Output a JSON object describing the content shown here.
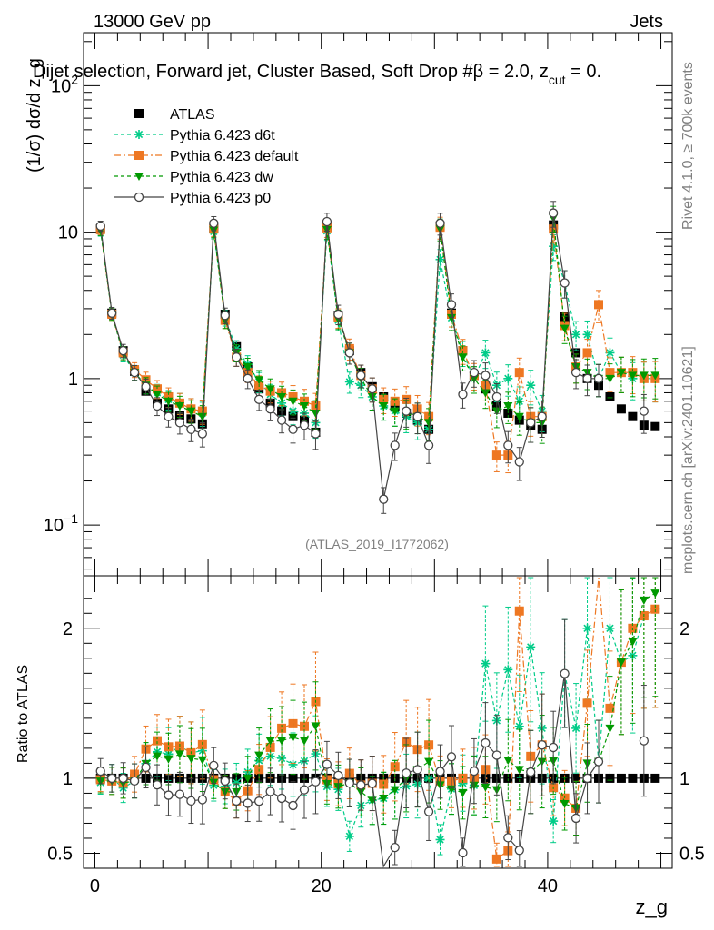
{
  "header": {
    "energy": "13000 GeV pp",
    "process": "Jets",
    "title": "Dijet selection, Forward jet, Cluster Based, Soft Drop #β = 2.0, z",
    "title_sub": "cut",
    "title_tail": " = 0.",
    "analysis_id": "(ATLAS_2019_I1772062)",
    "side_rivet": "Rivet 4.1.0, ≥ 700k events",
    "side_mcplots": "mcplots.cern.ch [arXiv:2401.10621]"
  },
  "chart_data": [
    {
      "type": "scatter",
      "panel": "main",
      "yscale": "log",
      "ylabel": "(1/σ) dσ/d z_g",
      "ylim": [
        0.045,
        230
      ],
      "xlim": [
        -1,
        51
      ],
      "ytick_labels": [
        {
          "v": 0.1,
          "base": "10",
          "exp": "−1"
        },
        {
          "v": 1,
          "text": "1"
        },
        {
          "v": 10,
          "text": "10"
        },
        {
          "v": 100,
          "base": "10",
          "exp": "2"
        }
      ],
      "x": [
        0.5,
        1.5,
        2.5,
        3.5,
        4.5,
        5.5,
        6.5,
        7.5,
        8.5,
        9.5,
        10.5,
        11.5,
        12.5,
        13.5,
        14.5,
        15.5,
        16.5,
        17.5,
        18.5,
        19.5,
        20.5,
        21.5,
        22.5,
        23.5,
        24.5,
        25.5,
        26.5,
        27.5,
        28.5,
        29.5,
        30.5,
        31.5,
        32.5,
        33.5,
        34.5,
        35.5,
        36.5,
        37.5,
        38.5,
        39.5,
        40.5,
        41.5,
        42.5,
        43.5,
        44.5,
        45.5,
        46.5,
        47.5,
        48.5,
        49.5
      ],
      "series": [
        {
          "name": "ATLAS",
          "color": "#000000",
          "marker": "square",
          "line": "none",
          "values": [
            10.5,
            2.8,
            1.55,
            1.12,
            0.82,
            0.68,
            0.62,
            0.56,
            0.53,
            0.49,
            10.6,
            2.75,
            1.65,
            1.2,
            0.85,
            0.68,
            0.6,
            0.55,
            0.52,
            0.43,
            10.8,
            2.7,
            1.55,
            1.1,
            0.88,
            0.75,
            0.65,
            0.58,
            0.52,
            0.45,
            11.0,
            2.8,
            1.55,
            1.05,
            0.85,
            0.65,
            0.58,
            0.52,
            0.48,
            0.45,
            11.2,
            2.65,
            1.5,
            1.0,
            0.9,
            0.75,
            0.62,
            0.55,
            0.48,
            0.47
          ]
        },
        {
          "name": "Pythia 6.423 d6t",
          "color": "#00cc88",
          "marker": "star",
          "line": "dashed",
          "values": [
            10.2,
            2.8,
            1.45,
            1.1,
            0.9,
            0.8,
            0.72,
            0.68,
            0.62,
            0.58,
            10.1,
            2.6,
            1.6,
            1.25,
            0.95,
            0.78,
            0.68,
            0.6,
            0.58,
            0.5,
            10.2,
            2.5,
            0.95,
            0.9,
            0.75,
            0.65,
            0.6,
            0.55,
            0.5,
            0.45,
            6.5,
            2.6,
            1.5,
            1.0,
            1.5,
            0.9,
            1.0,
            0.7,
            0.9,
            0.6,
            8.0,
            4.5,
            2.0,
            2.0,
            1.0,
            1.5,
            1.1,
            1.0,
            1.0,
            1.0
          ]
        },
        {
          "name": "Pythia 6.423 default",
          "color": "#ee7722",
          "marker": "square",
          "line": "dashdot",
          "values": [
            10.4,
            2.75,
            1.5,
            1.15,
            0.98,
            0.85,
            0.75,
            0.68,
            0.62,
            0.6,
            10.5,
            2.5,
            1.4,
            1.1,
            0.9,
            0.82,
            0.8,
            0.75,
            0.7,
            0.65,
            10.7,
            2.6,
            1.6,
            1.05,
            0.85,
            0.72,
            0.7,
            0.72,
            0.62,
            0.55,
            10.8,
            2.75,
            1.55,
            1.05,
            0.9,
            0.3,
            0.3,
            1.1,
            0.55,
            0.55,
            10.5,
            2.3,
            1.2,
            1.5,
            3.2,
            1.1,
            1.1,
            1.1,
            1.0,
            1.0
          ]
        },
        {
          "name": "Pythia 6.423 dw",
          "color": "#009900",
          "marker": "triangle-down",
          "line": "dashed",
          "values": [
            10.3,
            2.75,
            1.5,
            1.1,
            0.9,
            0.78,
            0.7,
            0.65,
            0.6,
            0.55,
            10.3,
            2.5,
            1.5,
            1.2,
            0.98,
            0.85,
            0.75,
            0.7,
            0.65,
            0.58,
            10.4,
            2.55,
            1.5,
            1.0,
            0.75,
            0.65,
            0.6,
            0.58,
            0.55,
            0.5,
            10.5,
            2.6,
            1.4,
            1.0,
            0.8,
            0.6,
            0.65,
            0.55,
            0.5,
            0.5,
            12.5,
            2.2,
            1.2,
            1.1,
            1.0,
            1.0,
            1.1,
            1.05,
            1.05,
            1.05
          ]
        },
        {
          "name": "Pythia 6.423 p0",
          "color": "#444444",
          "marker": "open-circle",
          "line": "solid",
          "values": [
            11.0,
            2.8,
            1.55,
            1.1,
            0.88,
            0.65,
            0.55,
            0.5,
            0.45,
            0.42,
            11.5,
            2.7,
            1.4,
            1.0,
            0.72,
            0.62,
            0.52,
            0.45,
            0.48,
            0.42,
            11.8,
            2.75,
            1.5,
            1.05,
            0.85,
            0.15,
            0.35,
            0.6,
            0.55,
            0.35,
            11.5,
            3.2,
            0.78,
            1.1,
            1.05,
            0.75,
            0.35,
            0.27,
            0.5,
            0.55,
            13.5,
            4.5,
            1.1,
            1.0,
            1.0,
            null,
            null,
            null,
            0.6,
            null
          ]
        }
      ]
    },
    {
      "type": "scatter",
      "panel": "ratio",
      "xlabel": "z_g",
      "ylabel": "Ratio to ATLAS",
      "ylim": [
        0.4,
        2.35
      ],
      "xlim": [
        -1,
        51
      ],
      "xtick_labels": [
        "0",
        "20",
        "40"
      ],
      "ytick_labels": [
        "0.5",
        "1",
        "2"
      ],
      "reference": 1.0
    }
  ]
}
